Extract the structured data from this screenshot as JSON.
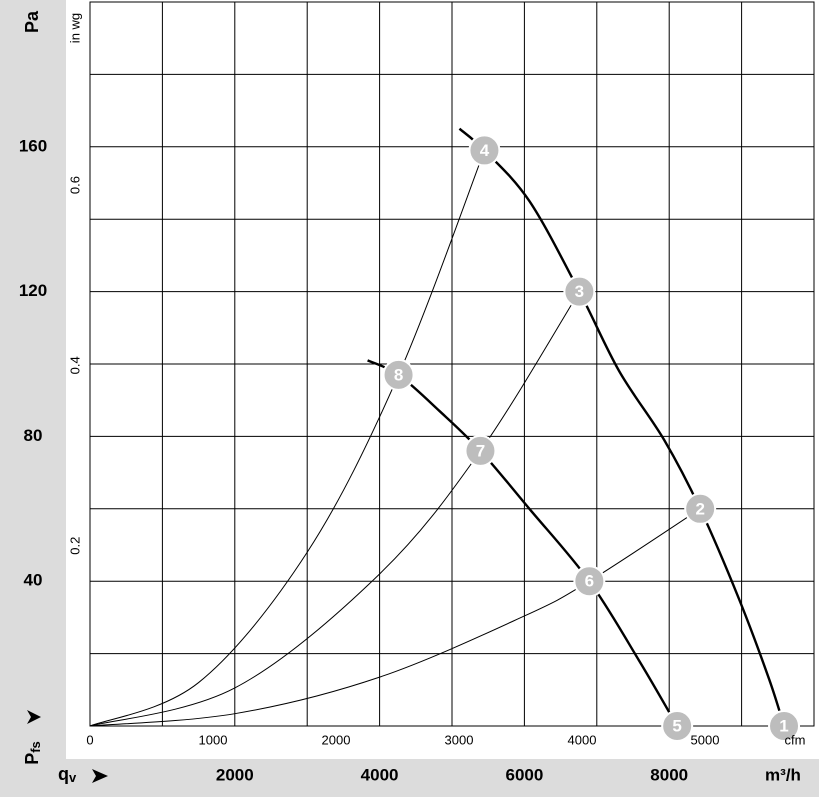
{
  "chart_data": {
    "type": "line",
    "y_label": "Pa",
    "y2_label": "in wg",
    "y_symbol": "P",
    "y_symbol_sub": "fs",
    "x_label": "m³/h",
    "x2_label": "cfm",
    "x_symbol": "q",
    "x_symbol_sub": "v",
    "xlim": [
      0,
      10000
    ],
    "xticks": [
      2000,
      4000,
      6000,
      8000
    ],
    "ylim": [
      0,
      200
    ],
    "yticks": [
      40,
      80,
      120,
      160
    ],
    "x2lim": [
      0,
      5886
    ],
    "x2ticks": [
      0,
      1000,
      2000,
      3000,
      4000,
      5000
    ],
    "y2lim": [
      0,
      0.803
    ],
    "y2ticks": [
      0.2,
      0.4,
      0.6
    ],
    "xgrid": [
      1000,
      2000,
      3000,
      4000,
      5000,
      6000,
      7000,
      8000,
      9000
    ],
    "ygrid": [
      20,
      40,
      60,
      80,
      100,
      120,
      140,
      160,
      180
    ],
    "series": [
      {
        "color": "#000000",
        "width": 2.4,
        "x": [
          5103,
          5448,
          6069,
          6759,
          7310,
          7931,
          8428,
          8966,
          9379,
          9586
        ],
        "values": [
          165,
          159,
          145,
          120,
          98,
          79,
          60,
          35,
          13,
          0
        ]
      },
      {
        "color": "#000000",
        "width": 2.4,
        "x": [
          3834,
          4262,
          4828,
          5393,
          6069,
          6897,
          7586,
          8110
        ],
        "values": [
          101,
          97,
          87,
          76,
          60,
          40,
          18,
          0
        ]
      },
      {
        "color": "#000000",
        "width": 1,
        "x": [
          0,
          2000,
          4000,
          6000,
          6897,
          8428
        ],
        "values": [
          0,
          3.4,
          13.5,
          30.4,
          40,
          60
        ]
      },
      {
        "color": "#000000",
        "width": 1,
        "x": [
          0,
          2000,
          4000,
          5393,
          6759
        ],
        "values": [
          0,
          10.5,
          42,
          76,
          120
        ]
      },
      {
        "color": "#000000",
        "width": 1,
        "x": [
          0,
          1500,
          3000,
          4262,
          5448
        ],
        "values": [
          0,
          12,
          48,
          97,
          159
        ]
      }
    ],
    "points": [
      {
        "label": "1",
        "x": 9586,
        "y": 0
      },
      {
        "label": "2",
        "x": 8428,
        "y": 60
      },
      {
        "label": "3",
        "x": 6759,
        "y": 120
      },
      {
        "label": "4",
        "x": 5448,
        "y": 159
      },
      {
        "label": "5",
        "x": 8110,
        "y": 0
      },
      {
        "label": "6",
        "x": 6897,
        "y": 40
      },
      {
        "label": "7",
        "x": 5393,
        "y": 76
      },
      {
        "label": "8",
        "x": 4262,
        "y": 97
      }
    ]
  }
}
